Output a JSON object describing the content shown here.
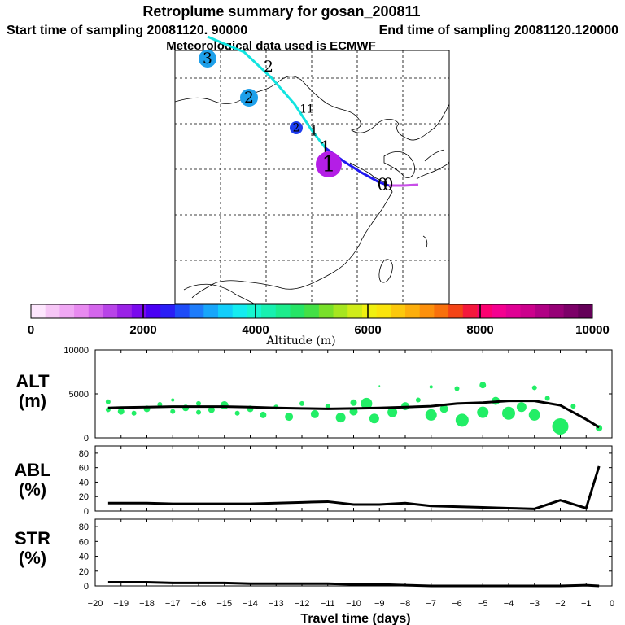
{
  "title": "Retroplume summary for gosan_200811",
  "start_label": "Start time of sampling 20081120. 90000",
  "end_label": "End time of sampling 20081120.120000",
  "met_label": "Meteorological data used is ECMWF",
  "colors": {
    "plume": "#22ee66",
    "line": "#000000"
  },
  "colorbar": {
    "ticks": [
      "0",
      "2000",
      "4000",
      "6000",
      "8000",
      "10000"
    ],
    "label": "Altitude (m)",
    "colors": [
      "#fde6fd",
      "#f6c6f6",
      "#f0a8f4",
      "#e88af0",
      "#d466ec",
      "#b844e8",
      "#9a22e6",
      "#7a0aee",
      "#4a00f4",
      "#2a1ef6",
      "#1e4cf8",
      "#1e7cfa",
      "#18a6fa",
      "#12cefa",
      "#14ecf0",
      "#16f6d0",
      "#18f0b0",
      "#1cec8c",
      "#26e466",
      "#44e046",
      "#78e02a",
      "#a6e620",
      "#d0ec1a",
      "#f0f010",
      "#fae40c",
      "#fcc80c",
      "#fcae0c",
      "#fc900c",
      "#f8700c",
      "#f44416",
      "#f4183c",
      "#fc0070",
      "#f40090",
      "#e00094",
      "#cc008c",
      "#b00084",
      "#960076",
      "#7c0068",
      "#640058"
    ]
  },
  "map_labels": [
    {
      "text": "3",
      "marker": "#1ea0ea",
      "size": 11
    },
    {
      "text": "2",
      "marker": "none",
      "size": 11
    },
    {
      "text": "2",
      "marker": "#1ea0ea",
      "size": 11
    },
    {
      "text": "11",
      "marker": "none",
      "size": 8
    },
    {
      "text": "1",
      "marker": "none",
      "size": 8
    },
    {
      "text": "2",
      "marker": "#1e3cf0",
      "size": 8
    },
    {
      "text": "1",
      "marker": "none",
      "size": 8
    },
    {
      "text": "1",
      "marker": "none",
      "size": 14
    },
    {
      "text": "1",
      "marker": "#b41ee6",
      "size": 16
    },
    {
      "text": "0",
      "marker": "none",
      "size": 12
    },
    {
      "text": "0",
      "marker": "none",
      "size": 12
    }
  ],
  "axes": {
    "xlabel": "Travel time (days)",
    "xticks": [
      -20,
      -19,
      -18,
      -17,
      -16,
      -15,
      -14,
      -13,
      -12,
      -11,
      -10,
      -9,
      -8,
      -7,
      -6,
      -5,
      -4,
      -3,
      -2,
      -1,
      0
    ],
    "xtick_labels": [
      "−20",
      "−19",
      "−18",
      "−17",
      "−16",
      "−15",
      "−14",
      "−13",
      "−12",
      "−11",
      "−10",
      "−9",
      "−8",
      "−7",
      "−6",
      "−5",
      "−4",
      "−3",
      "−2",
      "−1",
      "0"
    ]
  },
  "chart_data": [
    {
      "type": "line",
      "name": "ALT",
      "ylabel": "ALT",
      "yunit": "(m)",
      "ylim": [
        0,
        10000
      ],
      "yticks": [
        "0",
        "5000",
        "10000"
      ],
      "x": [
        -19.5,
        -19,
        -18,
        -17,
        -16,
        -15,
        -14,
        -13,
        -12,
        -11,
        -10,
        -9,
        -8,
        -7,
        -6,
        -5,
        -4,
        -3,
        -2,
        -1,
        -0.5
      ],
      "values": [
        3400,
        3450,
        3500,
        3550,
        3550,
        3550,
        3500,
        3400,
        3350,
        3300,
        3350,
        3400,
        3500,
        3600,
        3900,
        4000,
        4200,
        4200,
        3700,
        2100,
        1200
      ],
      "plume": [
        {
          "x": -19.5,
          "y": 3200,
          "s": 3
        },
        {
          "x": -19.5,
          "y": 4100,
          "s": 3
        },
        {
          "x": -19,
          "y": 3000,
          "s": 4
        },
        {
          "x": -18.5,
          "y": 2800,
          "s": 3
        },
        {
          "x": -18,
          "y": 3300,
          "s": 4
        },
        {
          "x": -17.5,
          "y": 3800,
          "s": 3
        },
        {
          "x": -17,
          "y": 4300,
          "s": 2
        },
        {
          "x": -17,
          "y": 3000,
          "s": 3
        },
        {
          "x": -16.5,
          "y": 3400,
          "s": 4
        },
        {
          "x": -16,
          "y": 3900,
          "s": 3
        },
        {
          "x": -16,
          "y": 2900,
          "s": 3
        },
        {
          "x": -15.5,
          "y": 3200,
          "s": 4
        },
        {
          "x": -15,
          "y": 3700,
          "s": 5
        },
        {
          "x": -14.5,
          "y": 2800,
          "s": 3
        },
        {
          "x": -14,
          "y": 3300,
          "s": 4
        },
        {
          "x": -13.5,
          "y": 2600,
          "s": 4
        },
        {
          "x": -13,
          "y": 3500,
          "s": 3
        },
        {
          "x": -12.5,
          "y": 2400,
          "s": 5
        },
        {
          "x": -12,
          "y": 3900,
          "s": 3
        },
        {
          "x": -11.5,
          "y": 2700,
          "s": 5
        },
        {
          "x": -11,
          "y": 3600,
          "s": 3
        },
        {
          "x": -10.5,
          "y": 2300,
          "s": 6
        },
        {
          "x": -10,
          "y": 4000,
          "s": 4
        },
        {
          "x": -10,
          "y": 3000,
          "s": 5
        },
        {
          "x": -9.5,
          "y": 3900,
          "s": 7
        },
        {
          "x": -9.2,
          "y": 2200,
          "s": 6
        },
        {
          "x": -9,
          "y": 5900,
          "s": 1
        },
        {
          "x": -8.5,
          "y": 2900,
          "s": 6
        },
        {
          "x": -8,
          "y": 3600,
          "s": 5
        },
        {
          "x": -7.5,
          "y": 4300,
          "s": 3
        },
        {
          "x": -7,
          "y": 2600,
          "s": 7
        },
        {
          "x": -7,
          "y": 5800,
          "s": 2
        },
        {
          "x": -6.5,
          "y": 3300,
          "s": 5
        },
        {
          "x": -6,
          "y": 5600,
          "s": 3
        },
        {
          "x": -5.8,
          "y": 2000,
          "s": 8
        },
        {
          "x": -5,
          "y": 2900,
          "s": 7
        },
        {
          "x": -5,
          "y": 6000,
          "s": 4
        },
        {
          "x": -4.5,
          "y": 4200,
          "s": 5
        },
        {
          "x": -4,
          "y": 2800,
          "s": 8
        },
        {
          "x": -3.5,
          "y": 3500,
          "s": 6
        },
        {
          "x": -3,
          "y": 2600,
          "s": 7
        },
        {
          "x": -3,
          "y": 5700,
          "s": 3
        },
        {
          "x": -2.5,
          "y": 4500,
          "s": 3
        },
        {
          "x": -2,
          "y": 1300,
          "s": 10
        },
        {
          "x": -1.5,
          "y": 3600,
          "s": 3
        },
        {
          "x": -0.5,
          "y": 1100,
          "s": 4
        }
      ]
    },
    {
      "type": "line",
      "name": "ABL",
      "ylabel": "ABL",
      "yunit": "(%)",
      "ylim": [
        0,
        90
      ],
      "yticks": [
        "0",
        "20",
        "40",
        "60",
        "80"
      ],
      "x": [
        -19.5,
        -19,
        -18,
        -17,
        -16,
        -15,
        -14,
        -13,
        -12,
        -11,
        -10,
        -9,
        -8,
        -7,
        -6,
        -5,
        -4,
        -3,
        -2,
        -1,
        -0.5
      ],
      "values": [
        11,
        11,
        11,
        10,
        10,
        10,
        10,
        11,
        12,
        13,
        9,
        9,
        11,
        7,
        6,
        5,
        4,
        3,
        15,
        4,
        62
      ]
    },
    {
      "type": "line",
      "name": "STR",
      "ylabel": "STR",
      "yunit": "(%)",
      "ylim": [
        0,
        90
      ],
      "yticks": [
        "0",
        "20",
        "40",
        "60",
        "80"
      ],
      "x": [
        -19.5,
        -19,
        -18,
        -17,
        -16,
        -15,
        -14,
        -13,
        -12,
        -11,
        -10,
        -9,
        -8,
        -7,
        -6,
        -5,
        -4,
        -3,
        -2,
        -1,
        -0.5
      ],
      "values": [
        5,
        5,
        5,
        4,
        4,
        4,
        3,
        3,
        3,
        3,
        2,
        2,
        1,
        0,
        0,
        0,
        0,
        0,
        0,
        1,
        0
      ]
    }
  ]
}
